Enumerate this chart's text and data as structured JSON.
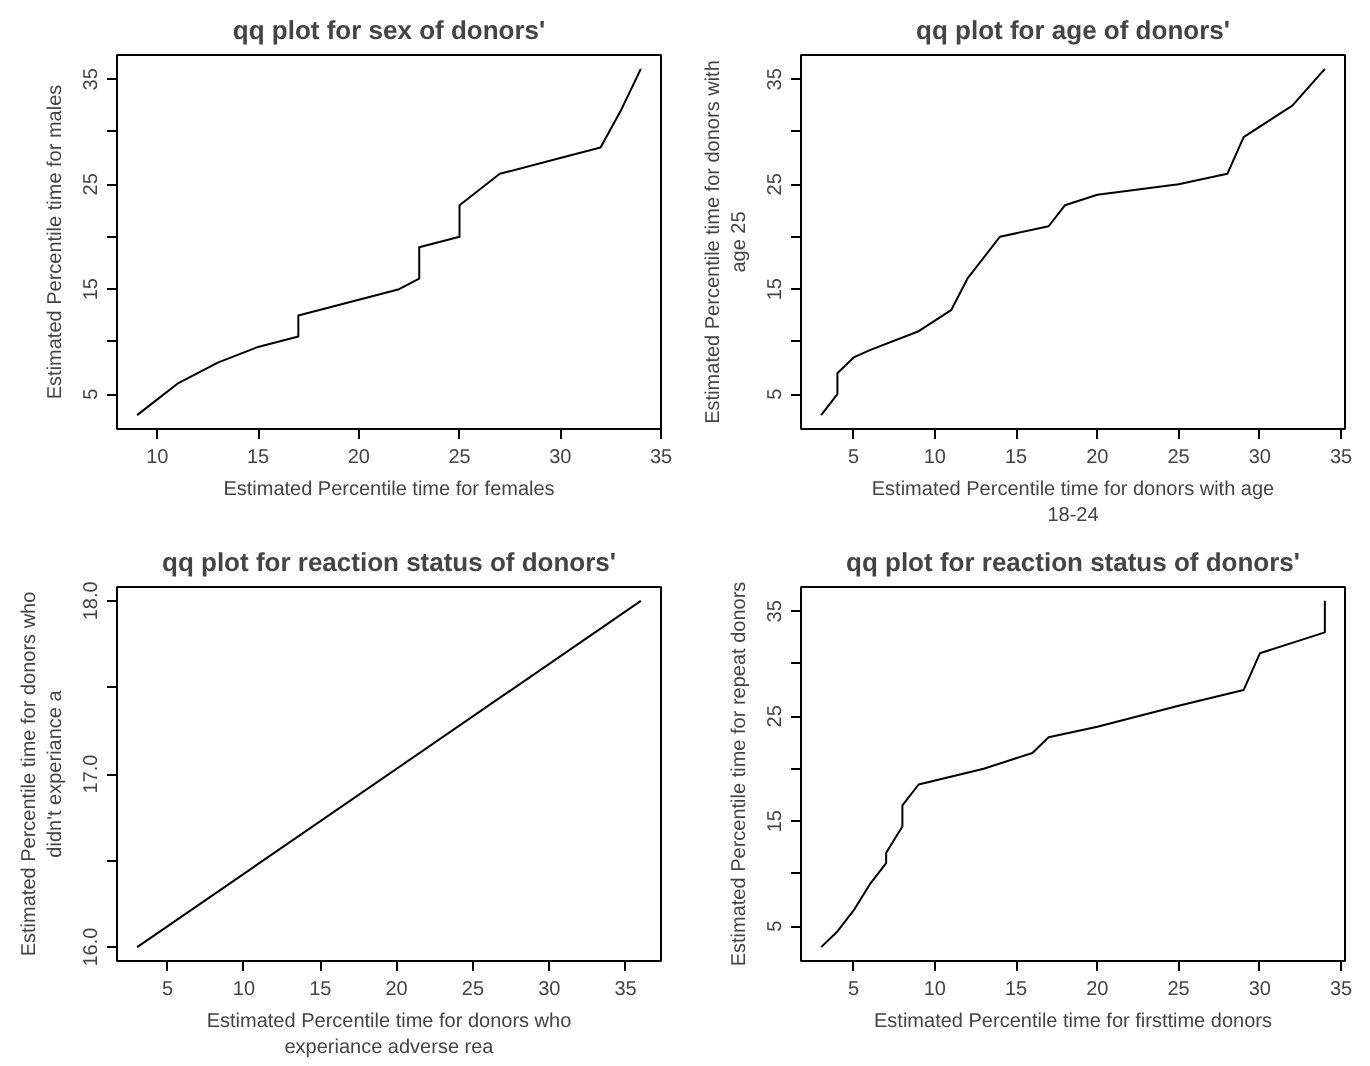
{
  "chart_data": [
    {
      "type": "line",
      "title": "qq plot for sex of donors'",
      "xlabel": "Estimated Percentile time for females",
      "ylabel": "Estimated Percentile time for males",
      "x": [
        9,
        10,
        11,
        12,
        13,
        15,
        17,
        17,
        18,
        20,
        22,
        23,
        23,
        24,
        25,
        25,
        27,
        30,
        32,
        33,
        34
      ],
      "series": [
        {
          "color": "#000000",
          "values": [
            3,
            4.5,
            6,
            7,
            8,
            9.5,
            10.5,
            12.5,
            13,
            14,
            15,
            16,
            19,
            19.5,
            20,
            23,
            26,
            27.5,
            28.5,
            32,
            36
          ]
        }
      ],
      "xlim": [
        8,
        35
      ],
      "ylim": [
        1.68,
        37.32
      ],
      "xticks": [
        10,
        15,
        20,
        25,
        30,
        35
      ],
      "yticks": [
        5,
        {
          "value": 10,
          "label": null
        },
        15,
        {
          "value": 20,
          "label": null
        },
        25,
        {
          "value": 30,
          "label": null
        },
        35
      ]
    },
    {
      "type": "line",
      "title": "qq plot for age of donors'",
      "xlabel": "Estimated Percentile time for donors with age 18-24",
      "ylabel": "Estimated Percentile time for donors with age 25",
      "x": [
        3,
        4,
        4,
        5,
        6,
        9,
        11,
        12,
        14,
        17,
        18,
        20,
        25,
        28,
        29,
        32,
        34
      ],
      "series": [
        {
          "color": "#000000",
          "values": [
            3,
            5,
            7,
            8.5,
            9.2,
            11,
            13,
            16,
            20,
            21,
            23,
            24,
            25,
            26,
            29.5,
            32.5,
            36
          ]
        }
      ],
      "xlim": [
        1.76,
        35.24
      ],
      "ylim": [
        1.68,
        37.32
      ],
      "xticks": [
        5,
        10,
        15,
        20,
        25,
        30,
        35
      ],
      "yticks": [
        5,
        {
          "value": 10,
          "label": null
        },
        15,
        {
          "value": 20,
          "label": null
        },
        25,
        {
          "value": 30,
          "label": null
        },
        35
      ]
    },
    {
      "type": "line",
      "title": "qq plot for reaction status of donors'",
      "xlabel": "Estimated Percentile time for donors who experiance adverse rea",
      "ylabel": "Estimated Percentile time for donors who didn't experiance a",
      "x": [
        3,
        36
      ],
      "series": [
        {
          "color": "#000000",
          "values": [
            16,
            18
          ]
        }
      ],
      "xlim": [
        1.68,
        37.32
      ],
      "ylim": [
        15.92,
        18.08
      ],
      "xticks": [
        5,
        10,
        15,
        20,
        25,
        30,
        35
      ],
      "yticks": [
        {
          "value": 16,
          "label": "16.0"
        },
        {
          "value": 16.5,
          "label": null
        },
        {
          "value": 17,
          "label": "17.0"
        },
        {
          "value": 17.5,
          "label": null
        },
        {
          "value": 18,
          "label": "18.0"
        }
      ]
    },
    {
      "type": "line",
      "title": "qq plot for reaction status of donors'",
      "xlabel": "Estimated Percentile time for firsttime donors",
      "ylabel": "Estimated Percentile time for repeat donors",
      "x": [
        3,
        4,
        5,
        6,
        7,
        7,
        8,
        8,
        9,
        13,
        16,
        17,
        20,
        25,
        29,
        30,
        34,
        34
      ],
      "series": [
        {
          "color": "#000000",
          "values": [
            3,
            4.5,
            6.5,
            9,
            11,
            12,
            14.5,
            16.5,
            18.5,
            20,
            21.5,
            23,
            24,
            26,
            27.5,
            31,
            33,
            36
          ]
        }
      ],
      "xlim": [
        1.76,
        35.24
      ],
      "ylim": [
        1.68,
        37.32
      ],
      "xticks": [
        5,
        10,
        15,
        20,
        25,
        30,
        35
      ],
      "yticks": [
        5,
        {
          "value": 10,
          "label": null
        },
        15,
        {
          "value": 20,
          "label": null
        },
        25,
        {
          "value": 30,
          "label": null
        },
        35
      ]
    }
  ]
}
